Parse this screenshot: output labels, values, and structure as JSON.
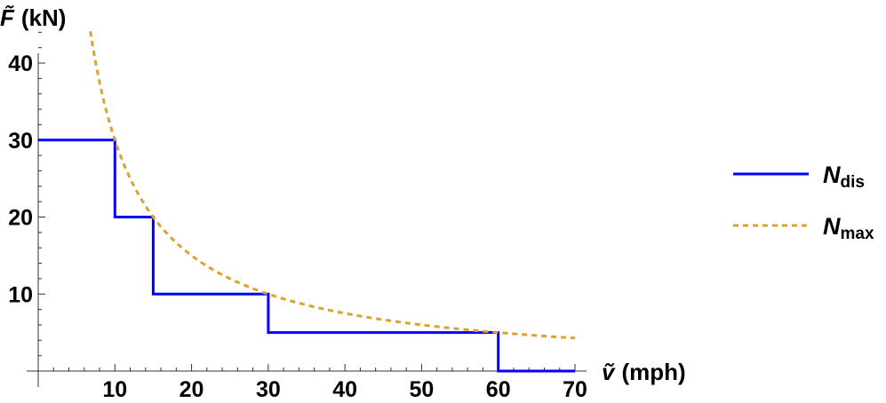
{
  "chart_data": {
    "type": "line",
    "xlabel": {
      "symbol": "ṽ",
      "unit": "(mph)"
    },
    "ylabel": {
      "symbol": "F̃",
      "unit": "(kN)"
    },
    "xlim": [
      0,
      70
    ],
    "ylim": [
      0,
      46
    ],
    "xticks": [
      10,
      20,
      30,
      40,
      50,
      60,
      70
    ],
    "xtick_labels": [
      "10",
      "20",
      "30",
      "40",
      "50",
      "60",
      "70"
    ],
    "yticks": [
      10,
      20,
      30,
      40
    ],
    "ytick_labels": [
      "10",
      "20",
      "30",
      "40"
    ],
    "grid": false,
    "legend_position": "right",
    "series": [
      {
        "name": "N_dis",
        "legend": {
          "base": "N",
          "sub": "dis"
        },
        "style": "step",
        "color": "#0000ff",
        "x": [
          0,
          10,
          10,
          15,
          15,
          30,
          30,
          60,
          60,
          70
        ],
        "y": [
          30,
          30,
          20,
          20,
          10,
          10,
          5,
          5,
          0,
          0
        ]
      },
      {
        "name": "N_max",
        "legend": {
          "base": "N",
          "sub": "max"
        },
        "style": "dashed",
        "color": "#e0a030",
        "function": "300/x",
        "x_range": [
          6.8,
          70
        ]
      }
    ]
  }
}
